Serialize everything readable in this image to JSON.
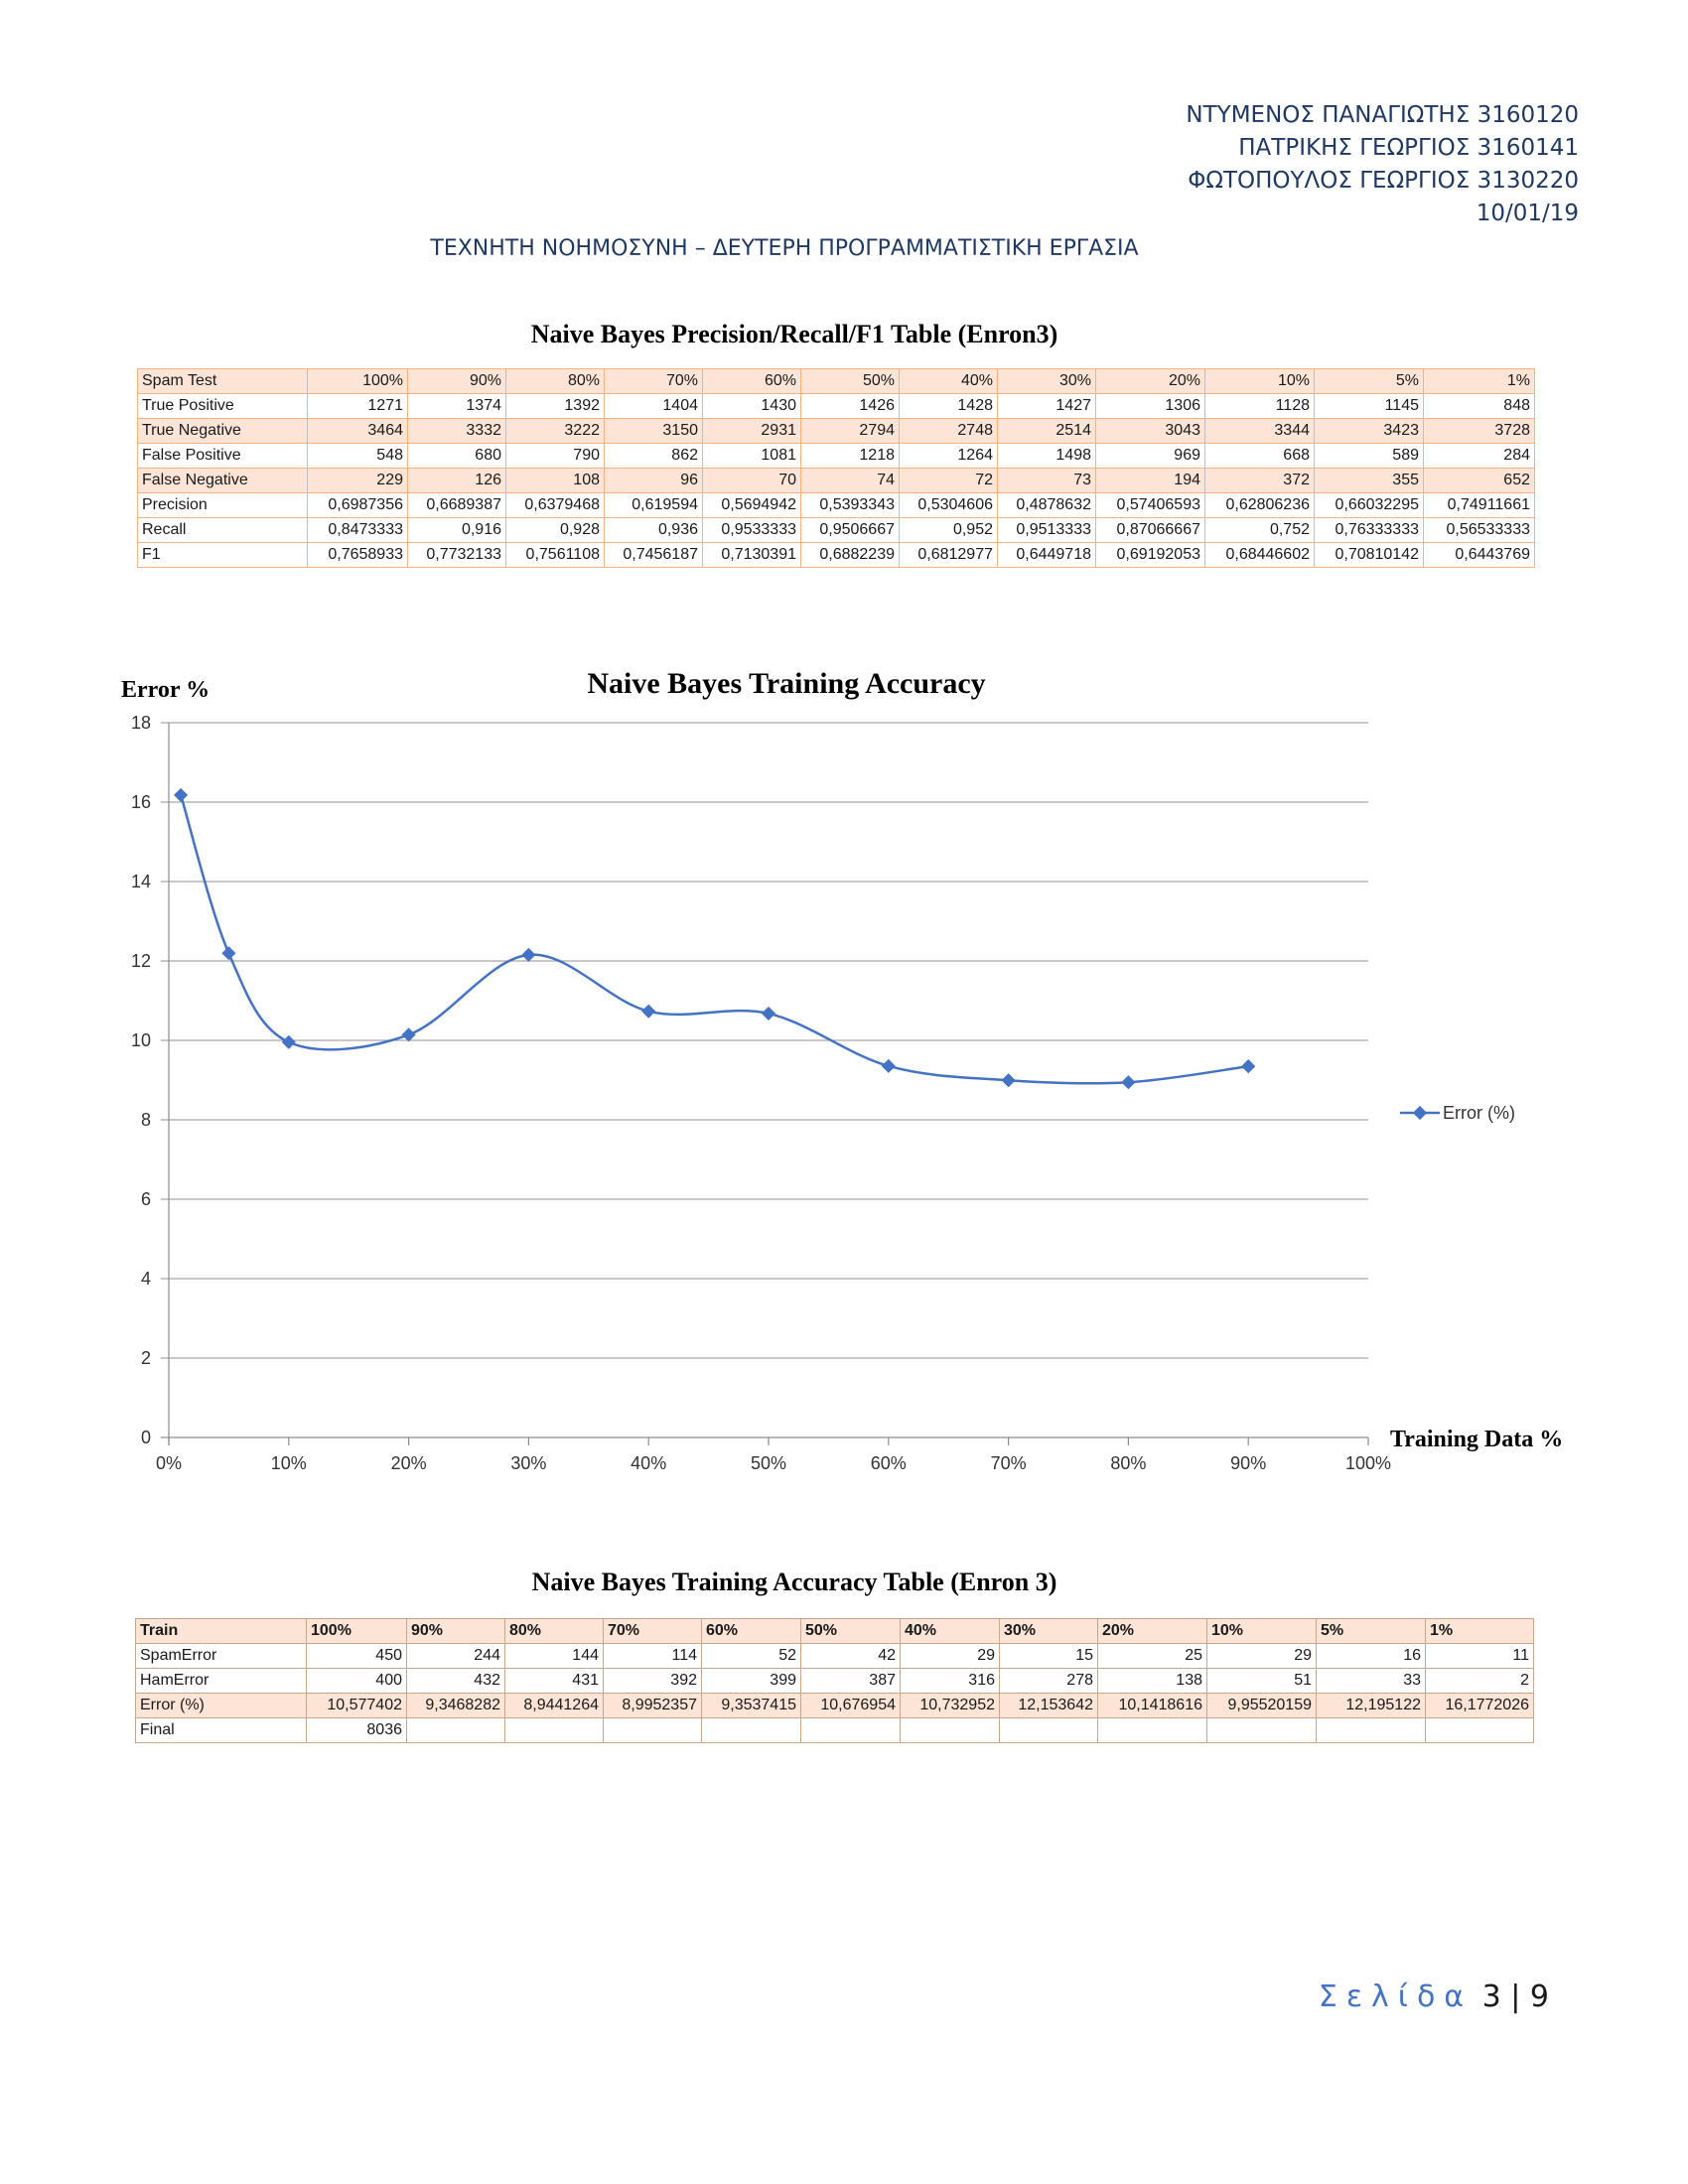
{
  "header": {
    "authors": [
      "ΝΤΥΜΕΝΟΣ ΠΑΝΑΓΙΩΤΗΣ 3160120",
      "ΠΑΤΡΙΚΗΣ ΓΕΩΡΓΙΟΣ 3160141",
      "ΦΩΤΟΠΟΥΛΟΣ ΓΕΩΡΓΙΟΣ 3130220"
    ],
    "date": "10/01/19",
    "subject": "ΤΕΧΝΗΤΗ ΝΟΗΜΟΣΥΝΗ – ΔΕΥΤΕΡΗ ΠΡΟΓΡΑΜΜΑΤΙΣΤΙΚΗ ΕΡΓΑΣΙΑ"
  },
  "prf_table": {
    "title": "Naive Bayes Precision/Recall/F1 Table (Enron3)",
    "columns": [
      "Spam Test",
      "100%",
      "90%",
      "80%",
      "70%",
      "60%",
      "50%",
      "40%",
      "30%",
      "20%",
      "10%",
      "5%",
      "1%"
    ],
    "rows": [
      [
        "True Positive",
        "1271",
        "1374",
        "1392",
        "1404",
        "1430",
        "1426",
        "1428",
        "1427",
        "1306",
        "1128",
        "1145",
        "848"
      ],
      [
        "True Negative",
        "3464",
        "3332",
        "3222",
        "3150",
        "2931",
        "2794",
        "2748",
        "2514",
        "3043",
        "3344",
        "3423",
        "3728"
      ],
      [
        "False Positive",
        "548",
        "680",
        "790",
        "862",
        "1081",
        "1218",
        "1264",
        "1498",
        "969",
        "668",
        "589",
        "284"
      ],
      [
        "False Negative",
        "229",
        "126",
        "108",
        "96",
        "70",
        "74",
        "72",
        "73",
        "194",
        "372",
        "355",
        "652"
      ],
      [
        "Precision",
        "0,6987356",
        "0,6689387",
        "0,6379468",
        "0,619594",
        "0,5694942",
        "0,5393343",
        "0,5304606",
        "0,4878632",
        "0,57406593",
        "0,62806236",
        "0,66032295",
        "0,74911661"
      ],
      [
        "Recall",
        "0,8473333",
        "0,916",
        "0,928",
        "0,936",
        "0,9533333",
        "0,9506667",
        "0,952",
        "0,9513333",
        "0,87066667",
        "0,752",
        "0,76333333",
        "0,56533333"
      ],
      [
        "F1",
        "0,7658933",
        "0,7732133",
        "0,7561108",
        "0,7456187",
        "0,7130391",
        "0,6882239",
        "0,6812977",
        "0,6449718",
        "0,69192053",
        "0,68446602",
        "0,70810142",
        "0,6443769"
      ]
    ]
  },
  "chart_data": {
    "type": "line",
    "title": "Naive Bayes Training Accuracy",
    "xlabel": "Training Data %",
    "ylabel": "Error %",
    "x_tick_labels": [
      "0%",
      "10%",
      "20%",
      "30%",
      "40%",
      "50%",
      "60%",
      "70%",
      "80%",
      "90%",
      "100%"
    ],
    "y_tick_labels": [
      "0",
      "2",
      "4",
      "6",
      "8",
      "10",
      "12",
      "14",
      "16",
      "18"
    ],
    "xlim": [
      0,
      100
    ],
    "ylim": [
      0,
      18
    ],
    "grid": "horizontal",
    "legend_position": "right",
    "series": [
      {
        "name": "Error (%)",
        "color": "#4472c4",
        "x": [
          1,
          5,
          10,
          20,
          30,
          40,
          50,
          60,
          70,
          80,
          90
        ],
        "y": [
          16.1772026,
          12.195122,
          9.95520159,
          10.1418616,
          12.153642,
          10.732952,
          10.676954,
          9.3537415,
          8.9952357,
          8.9441264,
          9.3468282
        ]
      }
    ]
  },
  "acc_table": {
    "title": "Naive Bayes Training Accuracy Table (Enron 3)",
    "columns": [
      "Train",
      "100%",
      "90%",
      "80%",
      "70%",
      "60%",
      "50%",
      "40%",
      "30%",
      "20%",
      "10%",
      "5%",
      "1%"
    ],
    "rows": [
      [
        "SpamError",
        "450",
        "244",
        "144",
        "114",
        "52",
        "42",
        "29",
        "15",
        "25",
        "29",
        "16",
        "11"
      ],
      [
        "HamError",
        "400",
        "432",
        "431",
        "392",
        "399",
        "387",
        "316",
        "278",
        "138",
        "51",
        "33",
        "2"
      ],
      [
        "Error (%)",
        "10,577402",
        "9,3468282",
        "8,9441264",
        "8,9952357",
        "9,3537415",
        "10,676954",
        "10,732952",
        "12,153642",
        "10,1418616",
        "9,95520159",
        "12,195122",
        "16,1772026"
      ],
      [
        "Final",
        "8036",
        "",
        "",
        "",
        "",
        "",
        "",
        "",
        "",
        "",
        "",
        ""
      ]
    ]
  },
  "footer": {
    "page_word": "Σελίδα",
    "page_num": "3 | 9"
  }
}
